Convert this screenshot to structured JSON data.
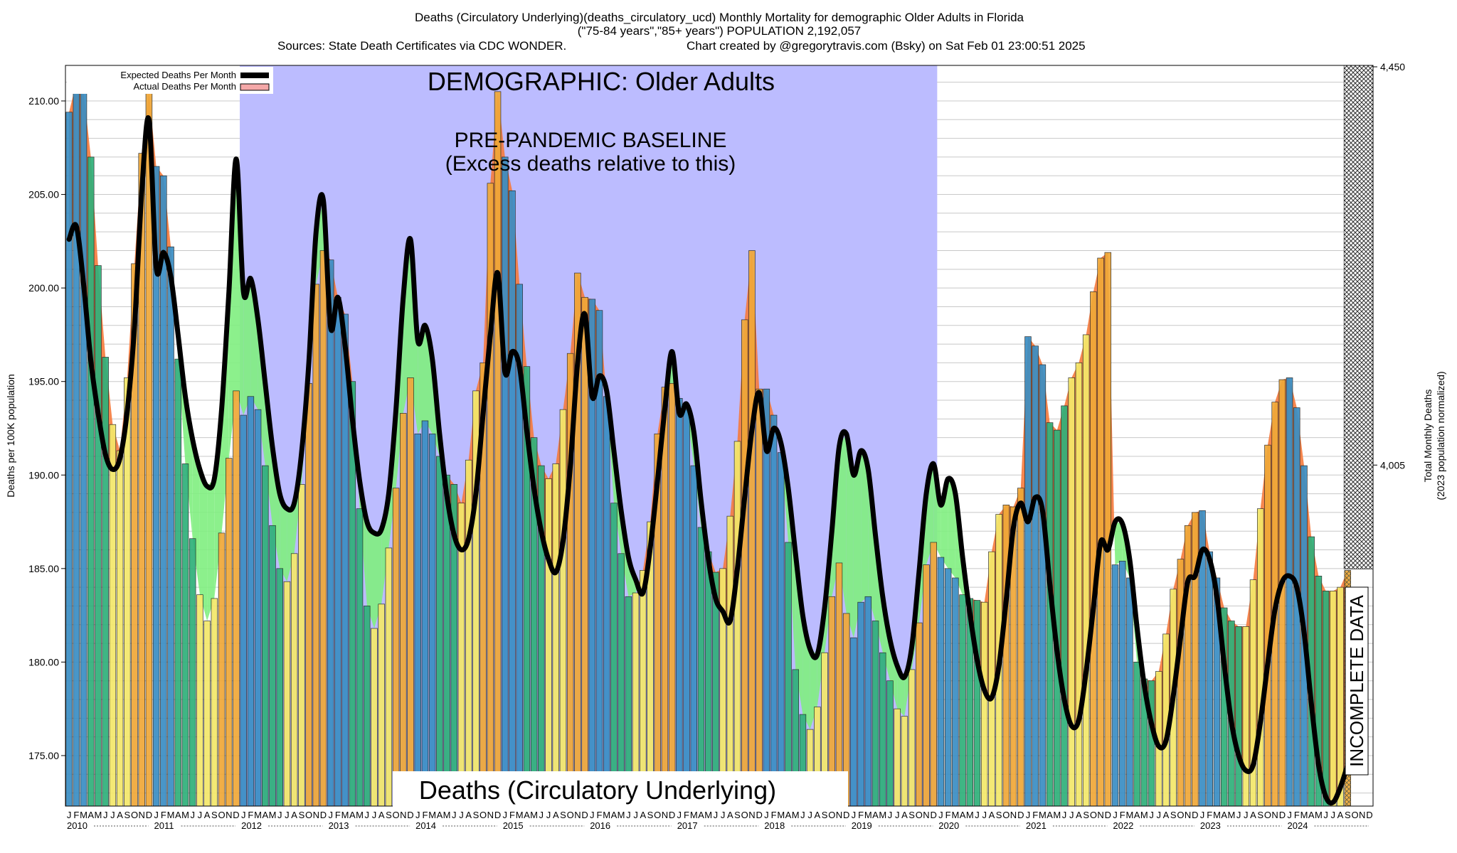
{
  "header": {
    "title_line1": "Deaths (Circulatory Underlying)(deaths_circulatory_ucd) Monthly Mortality for demographic Older Adults in Florida",
    "title_line2": "(\"75-84 years\",\"85+ years\") POPULATION 2,192,057",
    "sources": "Sources: State Death Certificates via CDC WONDER.",
    "credit": "Chart created by @gregorytravis.com (Bsky) on Sat Feb 01 23:00:51 2025"
  },
  "legend": {
    "expected_label": "Expected Deaths Per Month",
    "actual_label": "Actual Deaths Per Month"
  },
  "overlay": {
    "demographic": "DEMOGRAPHIC: Older Adults",
    "baseline_line1": "PRE-PANDEMIC BASELINE",
    "baseline_line2": "(Excess deaths relative to this)",
    "incomplete": "INCOMPLETE DATA",
    "bottom_label": "Deaths (Circulatory Underlying)"
  },
  "colors": {
    "winter": "#3a8ec4",
    "spring": "#2fb07a",
    "summer": "#f4e86a",
    "fall": "#f0a838",
    "excess_fill": "#f57a3c",
    "deficit_fill": "#80ee80",
    "baseline_band": "#bcbcff",
    "expected_line": "#000000",
    "actual_legend": "#f4a8a8"
  },
  "chart_data": {
    "type": "bar",
    "title": "Deaths (Circulatory Underlying)(deaths_circulatory_ucd) Monthly Mortality for demographic Older Adults in Florida",
    "ylabel": "Deaths per 100K population",
    "y2label_line1": "Total Monthly Deaths",
    "y2label_line2": "(2023 population normalized)",
    "ylim": [
      172.3,
      211.9
    ],
    "y_ticks": [
      "175.00",
      "180.00",
      "185.00",
      "190.00",
      "195.00",
      "200.00",
      "205.00",
      "210.00"
    ],
    "y2_ticks": [
      "4,005",
      "4,450"
    ],
    "month_letters": [
      "J",
      "F",
      "M",
      "A",
      "M",
      "J",
      "J",
      "A",
      "S",
      "O",
      "N",
      "D"
    ],
    "years": [
      "2010",
      "2011",
      "2012",
      "2013",
      "2014",
      "2015",
      "2016",
      "2017",
      "2018",
      "2019",
      "2020",
      "2021",
      "2022",
      "2023",
      "2024"
    ],
    "baseline_period": [
      "2012-01",
      "2019-12"
    ],
    "incomplete_from": "2024-09",
    "grid": true,
    "legend_position": "top-left",
    "series": [
      {
        "name": "Actual Deaths Per Month",
        "values": [
          209.4,
          211.0,
          210.5,
          207.0,
          201.2,
          196.3,
          192.7,
          191.3,
          195.2,
          201.3,
          207.2,
          210.5,
          206.5,
          206.0,
          202.2,
          196.2,
          190.6,
          186.6,
          183.6,
          182.2,
          183.4,
          186.9,
          190.9,
          194.5,
          193.2,
          194.2,
          193.5,
          190.5,
          187.3,
          185.0,
          184.3,
          185.8,
          189.5,
          194.9,
          200.2,
          202.0,
          201.5,
          199.5,
          198.6,
          195.0,
          188.2,
          183.0,
          181.8,
          183.1,
          186.1,
          189.3,
          193.3,
          195.2,
          192.2,
          192.9,
          192.2,
          191.0,
          190.0,
          189.5,
          188.5,
          190.8,
          194.5,
          196.0,
          205.6,
          210.5,
          207.0,
          205.2,
          200.2,
          195.8,
          192.0,
          190.5,
          189.8,
          190.6,
          193.5,
          196.5,
          200.8,
          199.5,
          199.4,
          198.8,
          194.2,
          188.5,
          185.8,
          183.5,
          183.7,
          184.9,
          187.5,
          192.2,
          194.7,
          194.9,
          194.1,
          193.5,
          190.5,
          187.2,
          185.9,
          184.8,
          185.0,
          187.8,
          191.8,
          198.3,
          202.0,
          194.6,
          194.6,
          193.2,
          191.2,
          186.4,
          179.6,
          177.2,
          176.4,
          177.6,
          180.5,
          183.5,
          185.3,
          182.6,
          181.3,
          183.2,
          183.5,
          182.2,
          180.5,
          179.0,
          177.5,
          177.1,
          179.6,
          182.1,
          185.2,
          186.4,
          185.6,
          185.0,
          184.5,
          183.6,
          183.4,
          183.3,
          183.2,
          185.9,
          187.9,
          188.4,
          188.3,
          189.3,
          197.4,
          196.9,
          195.9,
          192.8,
          192.4,
          193.7,
          195.2,
          196.0,
          197.5,
          199.8,
          201.6,
          201.9,
          185.2,
          185.4,
          184.5,
          180.0,
          179.1,
          179.0,
          179.5,
          181.5,
          183.9,
          185.5,
          187.3,
          188.0,
          188.1,
          185.9,
          184.5,
          182.9,
          182.2,
          181.9,
          181.9,
          184.4,
          188.2,
          191.6,
          193.9,
          195.1,
          195.2,
          193.6,
          190.5,
          186.7,
          184.6,
          183.8,
          183.8,
          184.0,
          184.9
        ]
      },
      {
        "name": "Expected Deaths Per Month",
        "values": [
          202.6,
          203.3,
          200.2,
          196.1,
          193.3,
          191.1,
          190.3,
          190.9,
          193.4,
          197.9,
          205.1,
          209.0,
          201.1,
          201.9,
          200.6,
          197.5,
          194.2,
          191.9,
          190.3,
          189.4,
          189.8,
          193.5,
          199.8,
          206.9,
          199.8,
          200.5,
          198.3,
          194.9,
          191.5,
          189.0,
          188.2,
          188.5,
          191.2,
          196.0,
          203.0,
          204.7,
          197.9,
          199.5,
          196.9,
          193.0,
          189.7,
          187.5,
          186.9,
          187.1,
          189.0,
          193.5,
          199.5,
          202.6,
          197.2,
          198.0,
          196.2,
          192.2,
          188.9,
          186.8,
          186.0,
          186.6,
          189.0,
          193.3,
          197.5,
          200.8,
          195.5,
          196.6,
          195.8,
          192.4,
          189.3,
          187.0,
          185.5,
          184.8,
          186.5,
          190.5,
          196.0,
          198.6,
          194.2,
          195.3,
          194.5,
          191.3,
          188.1,
          185.6,
          184.4,
          183.7,
          186.1,
          189.7,
          193.5,
          196.6,
          193.3,
          193.8,
          192.3,
          188.6,
          185.5,
          183.4,
          182.7,
          182.2,
          185.0,
          188.8,
          192.4,
          194.4,
          191.3,
          192.5,
          191.7,
          189.3,
          185.8,
          182.5,
          180.7,
          180.4,
          182.9,
          187.0,
          191.5,
          192.2,
          190.0,
          191.3,
          190.3,
          186.8,
          183.5,
          181.2,
          179.8,
          179.2,
          180.8,
          184.8,
          189.0,
          190.6,
          188.4,
          189.8,
          189.0,
          185.6,
          182.6,
          180.1,
          178.5,
          178.1,
          179.8,
          183.3,
          187.2,
          188.5,
          187.5,
          188.8,
          188.1,
          184.2,
          180.6,
          178.0,
          176.6,
          176.9,
          179.5,
          182.9,
          186.4,
          186.0,
          187.5,
          187.4,
          185.5,
          181.9,
          178.8,
          176.7,
          175.5,
          175.8,
          178.2,
          181.3,
          184.3,
          184.6,
          186.0,
          185.5,
          183.5,
          179.9,
          176.8,
          175.0,
          174.2,
          174.5,
          176.8,
          179.9,
          182.8,
          184.3,
          184.6,
          184.0,
          181.6,
          177.8,
          174.5,
          172.8,
          172.5,
          173.3,
          174.5
        ]
      }
    ]
  }
}
